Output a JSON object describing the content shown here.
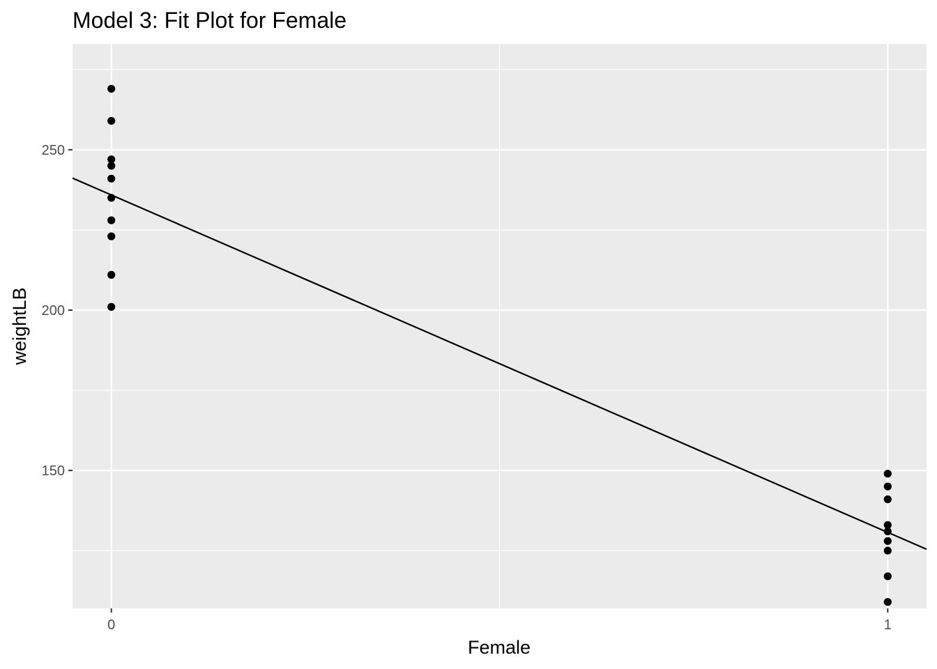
{
  "chart_data": {
    "type": "scatter",
    "title": "Model 3: Fit Plot for Female",
    "xlabel": "Female",
    "ylabel": "weightLB",
    "xlim": [
      -0.05,
      1.05
    ],
    "ylim": [
      107,
      283
    ],
    "x_ticks": [
      0,
      1
    ],
    "x_tick_labels": [
      "0",
      "1"
    ],
    "x_minor_ticks": [
      0.5
    ],
    "y_ticks": [
      150,
      200,
      250
    ],
    "y_tick_labels": [
      "150",
      "200",
      "250"
    ],
    "y_minor_ticks": [
      125,
      175,
      225,
      275
    ],
    "grid": true,
    "legend": "none",
    "series": [
      {
        "kind": "points",
        "points": [
          [
            0,
            269
          ],
          [
            0,
            259
          ],
          [
            0,
            247
          ],
          [
            0,
            245
          ],
          [
            0,
            241
          ],
          [
            0,
            235
          ],
          [
            0,
            228
          ],
          [
            0,
            223
          ],
          [
            0,
            211
          ],
          [
            0,
            201
          ],
          [
            1,
            149
          ],
          [
            1,
            145
          ],
          [
            1,
            141
          ],
          [
            1,
            133
          ],
          [
            1,
            131
          ],
          [
            1,
            128
          ],
          [
            1,
            125
          ],
          [
            1,
            117
          ],
          [
            1,
            109
          ]
        ]
      },
      {
        "kind": "fit-line",
        "intercept": 235.9,
        "slope": -105.2
      }
    ],
    "colors": {
      "panel": "#ebebeb",
      "grid": "#ffffff",
      "points": "#000000",
      "line": "#000000",
      "tick_text": "#4d4d4d",
      "tick_mark": "#333333"
    }
  }
}
